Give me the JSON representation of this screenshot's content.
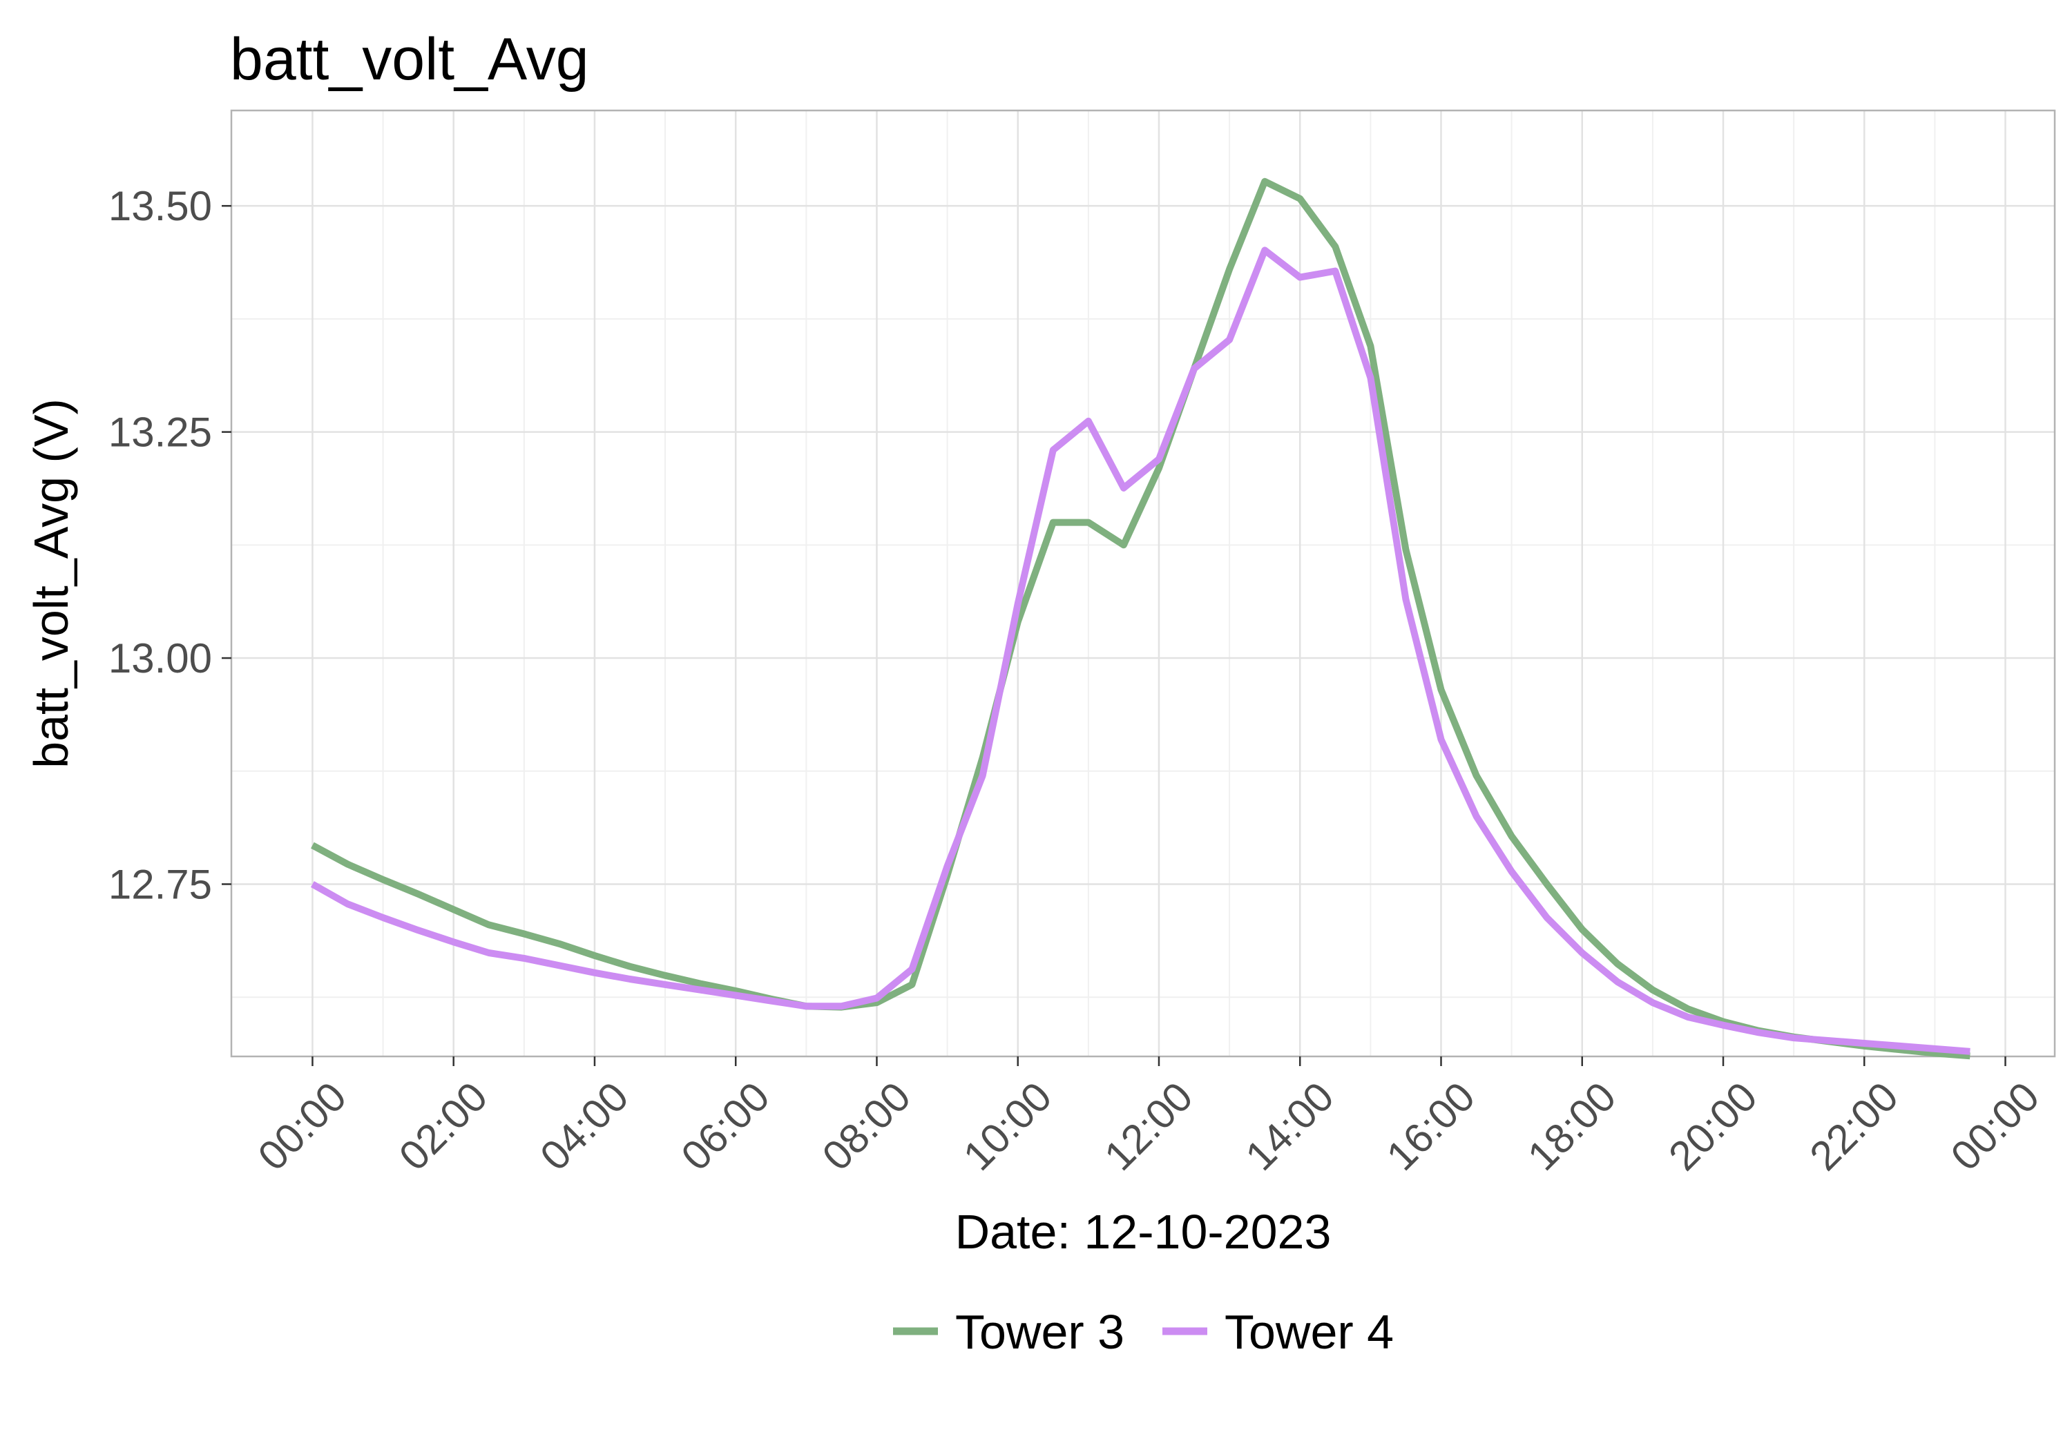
{
  "chart_data": {
    "type": "line",
    "title": "batt_volt_Avg",
    "xlabel": "Date: 12-10-2023",
    "ylabel": "batt_volt_Avg (V)",
    "x_unit": "hours",
    "xlim": [
      -1.15,
      24.7
    ],
    "ylim": [
      12.5595,
      13.6055
    ],
    "x_ticks": [
      0,
      2,
      4,
      6,
      8,
      10,
      12,
      14,
      16,
      18,
      20,
      22,
      24
    ],
    "x_tick_labels": [
      "00:00",
      "02:00",
      "04:00",
      "06:00",
      "08:00",
      "10:00",
      "12:00",
      "14:00",
      "16:00",
      "18:00",
      "20:00",
      "22:00",
      "00:00"
    ],
    "y_ticks": [
      12.75,
      13.0,
      13.25,
      13.5
    ],
    "y_tick_labels": [
      "12.75",
      "13.00",
      "13.25",
      "13.50"
    ],
    "grid": true,
    "legend_position": "bottom",
    "x": [
      0,
      0.5,
      1,
      1.5,
      2,
      2.5,
      3,
      3.5,
      4,
      4.5,
      5,
      5.5,
      6,
      6.5,
      7,
      7.5,
      8,
      8.5,
      9,
      9.5,
      10,
      10.5,
      11,
      11.5,
      12,
      12.5,
      13,
      13.5,
      14,
      14.5,
      15,
      15.5,
      16,
      16.5,
      17,
      17.5,
      18,
      18.5,
      19,
      19.5,
      20,
      20.5,
      21,
      21.5,
      22,
      22.5,
      23,
      23.5
    ],
    "series": [
      {
        "name": "Tower 3",
        "color": "#7fb07f",
        "values": [
          12.793,
          12.772,
          12.755,
          12.739,
          12.722,
          12.705,
          12.695,
          12.684,
          12.671,
          12.659,
          12.649,
          12.64,
          12.632,
          12.623,
          12.615,
          12.614,
          12.619,
          12.639,
          12.76,
          12.89,
          13.04,
          13.15,
          13.15,
          13.125,
          13.21,
          13.32,
          13.43,
          13.527,
          13.508,
          13.455,
          13.345,
          13.12,
          12.965,
          12.87,
          12.803,
          12.75,
          12.7,
          12.662,
          12.633,
          12.612,
          12.598,
          12.588,
          12.581,
          12.576,
          12.571,
          12.567,
          12.563,
          12.56
        ]
      },
      {
        "name": "Tower 4",
        "color": "#cc8cf2",
        "values": [
          12.75,
          12.728,
          12.713,
          12.699,
          12.686,
          12.674,
          12.668,
          12.66,
          12.652,
          12.645,
          12.639,
          12.633,
          12.627,
          12.621,
          12.615,
          12.615,
          12.624,
          12.656,
          12.77,
          12.87,
          13.06,
          13.23,
          13.262,
          13.188,
          13.22,
          13.32,
          13.352,
          13.451,
          13.421,
          13.428,
          13.31,
          13.065,
          12.91,
          12.825,
          12.764,
          12.713,
          12.674,
          12.642,
          12.619,
          12.603,
          12.594,
          12.586,
          12.58,
          12.577,
          12.574,
          12.571,
          12.568,
          12.565
        ]
      }
    ]
  }
}
